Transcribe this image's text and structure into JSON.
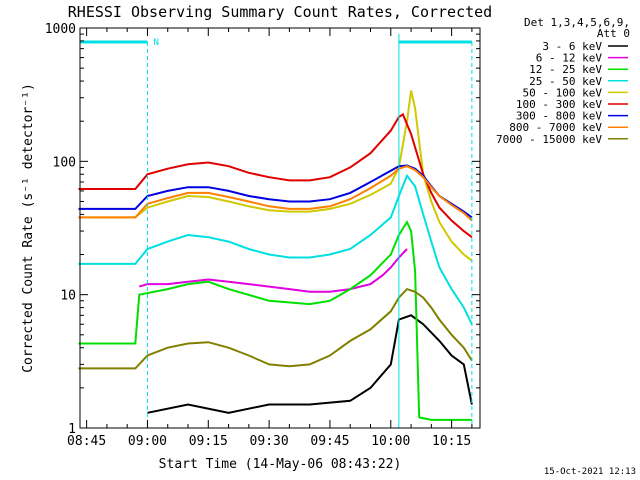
{
  "chart_data": {
    "type": "line",
    "title": "RHESSI Observing Summary Count Rates, Corrected",
    "xlabel": "Start Time (14-May-06 08:43:22)",
    "ylabel": "Corrected Count Rate (s⁻¹ detector⁻¹)",
    "y_scale": "log",
    "ylim": [
      1,
      1000
    ],
    "xlim": [
      "08:43:22",
      "10:22:00"
    ],
    "x_ticks": [
      "08:45",
      "09:00",
      "09:15",
      "09:30",
      "09:45",
      "10:00",
      "10:15"
    ],
    "y_ticks": [
      "1",
      "10",
      "100",
      "1000"
    ],
    "grid": false,
    "legend_position": "right",
    "legend_header": [
      "Det 1,3,4,5,6,9,",
      "Att 0"
    ],
    "flag_label": "N",
    "timestamp": "15-Oct-2021 12:13",
    "series": [
      {
        "name": "3 - 6 keV",
        "color": "#000000",
        "x": [
          "09:00",
          "09:10",
          "09:20",
          "09:30",
          "09:40",
          "09:50",
          "09:55",
          "10:00",
          "10:02",
          "10:05",
          "10:08",
          "10:12",
          "10:15",
          "10:18",
          "10:20"
        ],
        "y": [
          1.3,
          1.5,
          1.3,
          1.5,
          1.5,
          1.6,
          2.0,
          3.0,
          6.5,
          7.0,
          6.0,
          4.5,
          3.5,
          3.0,
          1.5
        ]
      },
      {
        "name": "6 - 12 keV",
        "color": "#e000e0",
        "x": [
          "08:58",
          "09:00",
          "09:05",
          "09:10",
          "09:15",
          "09:20",
          "09:25",
          "09:30",
          "09:35",
          "09:40",
          "09:45",
          "09:50",
          "09:55",
          "09:58",
          "10:00",
          "10:02",
          "10:04"
        ],
        "y": [
          11.5,
          12,
          12,
          12.5,
          13,
          12.5,
          12,
          11.5,
          11,
          10.5,
          10.5,
          11,
          12,
          14,
          16,
          19,
          22
        ]
      },
      {
        "name": "12 - 25 keV",
        "color": "#00e000",
        "x": [
          "08:43",
          "08:57",
          "08:58",
          "09:05",
          "09:10",
          "09:15",
          "09:20",
          "09:30",
          "09:40",
          "09:45",
          "09:50",
          "09:55",
          "10:00",
          "10:02",
          "10:04",
          "10:05",
          "10:06",
          "10:07",
          "10:10",
          "10:20"
        ],
        "y": [
          4.3,
          4.3,
          10,
          11,
          12,
          12.5,
          11,
          9,
          8.5,
          9,
          11,
          14,
          20,
          28,
          35,
          30,
          15,
          1.2,
          1.15,
          1.15
        ]
      },
      {
        "name": "25 - 50 keV",
        "color": "#00e0e0",
        "x": [
          "08:43",
          "08:57",
          "09:00",
          "09:05",
          "09:10",
          "09:15",
          "09:20",
          "09:25",
          "09:30",
          "09:35",
          "09:40",
          "09:45",
          "09:50",
          "09:55",
          "10:00",
          "10:02",
          "10:04",
          "10:06",
          "10:08",
          "10:10",
          "10:12",
          "10:15",
          "10:18",
          "10:20"
        ],
        "y": [
          17,
          17,
          22,
          25,
          28,
          27,
          25,
          22,
          20,
          19,
          19,
          20,
          22,
          28,
          38,
          55,
          78,
          65,
          40,
          25,
          16,
          11,
          8,
          6
        ]
      },
      {
        "name": "50 - 100 keV",
        "color": "#d0c800",
        "x": [
          "08:43",
          "08:57",
          "09:00",
          "09:05",
          "09:10",
          "09:15",
          "09:20",
          "09:25",
          "09:30",
          "09:35",
          "09:40",
          "09:45",
          "09:50",
          "09:55",
          "10:00",
          "10:02",
          "10:04",
          "10:05",
          "10:06",
          "10:08",
          "10:10",
          "10:12",
          "10:15",
          "10:18",
          "10:20"
        ],
        "y": [
          38,
          38,
          45,
          50,
          55,
          54,
          50,
          46,
          43,
          42,
          42,
          44,
          48,
          56,
          68,
          90,
          200,
          340,
          250,
          80,
          50,
          35,
          25,
          20,
          18
        ]
      },
      {
        "name": "100 - 300 keV",
        "color": "#e00000",
        "x": [
          "08:43",
          "08:57",
          "09:00",
          "09:05",
          "09:10",
          "09:15",
          "09:20",
          "09:25",
          "09:30",
          "09:35",
          "09:40",
          "09:45",
          "09:50",
          "09:55",
          "10:00",
          "10:02",
          "10:03",
          "10:05",
          "10:08",
          "10:10",
          "10:12",
          "10:15",
          "10:18",
          "10:20"
        ],
        "y": [
          62,
          62,
          80,
          88,
          95,
          98,
          92,
          82,
          76,
          72,
          72,
          76,
          90,
          115,
          170,
          215,
          225,
          160,
          80,
          58,
          45,
          36,
          30,
          27
        ]
      },
      {
        "name": "300 - 800 keV",
        "color": "#0000e0",
        "x": [
          "08:43",
          "08:57",
          "09:00",
          "09:05",
          "09:10",
          "09:15",
          "09:20",
          "09:25",
          "09:30",
          "09:35",
          "09:40",
          "09:45",
          "09:50",
          "09:55",
          "10:00",
          "10:02",
          "10:04",
          "10:06",
          "10:08",
          "10:10",
          "10:12",
          "10:15",
          "10:18",
          "10:20"
        ],
        "y": [
          44,
          44,
          55,
          60,
          64,
          64,
          60,
          55,
          52,
          50,
          50,
          52,
          58,
          70,
          85,
          92,
          93,
          88,
          78,
          65,
          55,
          48,
          42,
          38
        ]
      },
      {
        "name": "800 - 7000 keV",
        "color": "#ff8000",
        "x": [
          "08:43",
          "08:57",
          "09:00",
          "09:05",
          "09:10",
          "09:15",
          "09:20",
          "09:25",
          "09:30",
          "09:35",
          "09:40",
          "09:45",
          "09:50",
          "09:55",
          "10:00",
          "10:02",
          "10:04",
          "10:06",
          "10:08",
          "10:10",
          "10:12",
          "10:15",
          "10:18",
          "10:20"
        ],
        "y": [
          38,
          38,
          48,
          53,
          58,
          58,
          54,
          50,
          46,
          44,
          44,
          46,
          52,
          63,
          78,
          88,
          92,
          86,
          76,
          64,
          55,
          47,
          41,
          36
        ]
      },
      {
        "name": "7000 - 15000 keV",
        "color": "#808000",
        "x": [
          "08:43",
          "08:57",
          "09:00",
          "09:05",
          "09:10",
          "09:15",
          "09:20",
          "09:25",
          "09:30",
          "09:35",
          "09:40",
          "09:45",
          "09:50",
          "09:55",
          "10:00",
          "10:02",
          "10:04",
          "10:06",
          "10:08",
          "10:10",
          "10:12",
          "10:15",
          "10:18",
          "10:20"
        ],
        "y": [
          2.8,
          2.8,
          3.5,
          4.0,
          4.3,
          4.4,
          4.0,
          3.5,
          3.0,
          2.9,
          3.0,
          3.5,
          4.5,
          5.5,
          7.5,
          9.5,
          11,
          10.5,
          9.5,
          8,
          6.5,
          5,
          4,
          3.2
        ]
      }
    ]
  }
}
